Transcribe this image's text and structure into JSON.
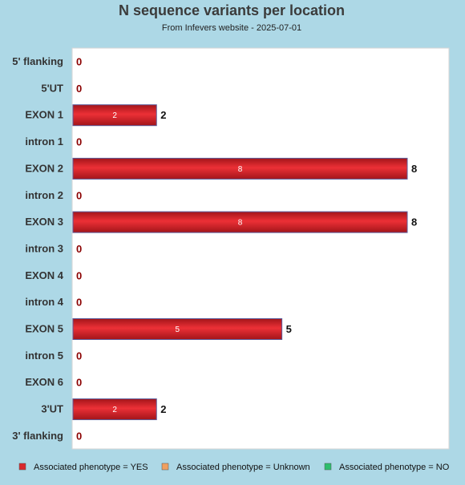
{
  "chart_data": {
    "type": "bar",
    "orientation": "horizontal",
    "title": "N sequence variants per location",
    "subtitle": "From Infevers website - 2025-07-01",
    "categories": [
      "5' flanking",
      "5'UT",
      "EXON 1",
      "intron 1",
      "EXON 2",
      "intron 2",
      "EXON 3",
      "intron 3",
      "EXON 4",
      "intron 4",
      "EXON 5",
      "intron 5",
      "EXON 6",
      "3'UT",
      "3' flanking"
    ],
    "values": [
      0,
      0,
      2,
      0,
      8,
      0,
      8,
      0,
      0,
      0,
      5,
      0,
      0,
      2,
      0
    ],
    "xlim": [
      0,
      8
    ],
    "grid": false,
    "legend_position": "bottom",
    "series_colors": {
      "yes": "#d9282d",
      "unknown": "#f0a060",
      "no": "#2dbe6c"
    },
    "legend": [
      {
        "label": "Associated phenotype = YES",
        "color": "#d9282d"
      },
      {
        "label": "Associated phenotype = Unknown",
        "color": "#f0a060"
      },
      {
        "label": "Associated phenotype = NO",
        "color": "#2dbe6c"
      }
    ],
    "zero_label_color": "#8b0000"
  }
}
